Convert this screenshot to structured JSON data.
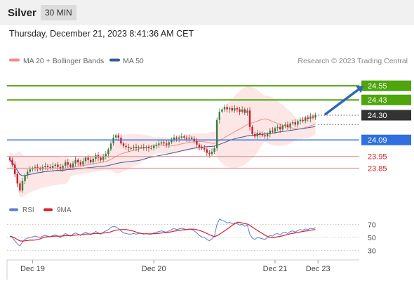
{
  "header": {
    "title": "Silver",
    "timeframe": "30 MIN",
    "datetime": "Thursday, December 21, 2023 8:41:36 AM CET"
  },
  "colors": {
    "ma20": "#f28c8c",
    "bollinger_fill": "#fde3e3",
    "ma50": "#3a5c95",
    "green_level": "#4ea50c",
    "blue_level": "#2f6fe0",
    "red_level": "#d8202a",
    "candle_up": "#3e7d3e",
    "candle_down": "#c8202a",
    "current_price": "#333333",
    "rsi": "#5b7fd6",
    "rsi_ma": "#d8202a",
    "arrow": "#2f67b5"
  },
  "legend": {
    "ma20": "MA 20 + Bollinger Bands",
    "ma50": "MA 50"
  },
  "copyright": "Research © 2023 Trading Central",
  "chart_data": {
    "type": "candlestick",
    "ylim": [
      23.56,
      24.7
    ],
    "x_ticks": [
      {
        "label": "Dec 19",
        "index": 9
      },
      {
        "label": "Dec 20",
        "index": 57
      },
      {
        "label": "Dec 21",
        "index": 105
      },
      {
        "label": "Dec 23",
        "index": 122
      }
    ],
    "levels": [
      {
        "value": 24.55,
        "label": "24.55",
        "kind": "resistance"
      },
      {
        "value": 24.43,
        "label": "24.43",
        "kind": "resistance"
      },
      {
        "value": 24.09,
        "label": "24.09",
        "kind": "pivot"
      },
      {
        "value": 23.95,
        "label": "23.95",
        "kind": "support"
      },
      {
        "value": 23.85,
        "label": "23.85",
        "kind": "support"
      }
    ],
    "current_price": {
      "value": 24.3,
      "label": "24.30"
    },
    "arrow": {
      "from": {
        "index": 125,
        "value": 24.31
      },
      "to": {
        "index": 140,
        "value": 24.55
      }
    },
    "closes": [
      23.92,
      23.88,
      23.8,
      23.72,
      23.66,
      23.74,
      23.79,
      23.82,
      23.84,
      23.85,
      23.86,
      23.85,
      23.84,
      23.86,
      23.87,
      23.86,
      23.85,
      23.87,
      23.88,
      23.86,
      23.84,
      23.87,
      23.9,
      23.88,
      23.86,
      23.89,
      23.92,
      23.9,
      23.88,
      23.91,
      23.94,
      23.92,
      23.9,
      23.93,
      23.96,
      23.94,
      23.92,
      23.95,
      23.97,
      24.01,
      24.06,
      24.11,
      24.13,
      24.11,
      24.06,
      24.04,
      24.03,
      24.02,
      24.02,
      24.03,
      24.02,
      24.03,
      24.03,
      24.02,
      24.03,
      24.02,
      24.02,
      24.04,
      24.05,
      24.06,
      24.07,
      24.06,
      24.05,
      24.07,
      24.09,
      24.11,
      24.1,
      24.11,
      24.12,
      24.11,
      24.1,
      24.11,
      24.1,
      24.08,
      24.05,
      24.03,
      24.02,
      24.01,
      23.98,
      23.97,
      23.99,
      24.02,
      24.26,
      24.33,
      24.35,
      24.37,
      24.35,
      24.36,
      24.34,
      24.36,
      24.35,
      24.33,
      24.35,
      24.32,
      24.34,
      24.2,
      24.14,
      24.12,
      24.15,
      24.14,
      24.13,
      24.12,
      24.14,
      24.17,
      24.16,
      24.19,
      24.2,
      24.18,
      24.21,
      24.22,
      24.2,
      24.23,
      24.24,
      24.22,
      24.25,
      24.26,
      24.25,
      24.28,
      24.27,
      24.29,
      24.28,
      24.3
    ],
    "rsi_ticks": [
      70,
      50,
      30
    ],
    "rsi_ylim": [
      20,
      80
    ],
    "rsi": [
      52,
      50,
      45,
      40,
      37,
      43,
      47,
      49,
      50,
      51,
      52,
      51,
      50,
      52,
      53,
      52,
      51,
      53,
      54,
      52,
      50,
      53,
      56,
      54,
      52,
      55,
      57,
      55,
      53,
      56,
      58,
      56,
      54,
      57,
      59,
      57,
      55,
      58,
      60,
      62,
      65,
      67,
      66,
      64,
      60,
      57,
      56,
      55,
      55,
      56,
      55,
      56,
      56,
      55,
      56,
      55,
      55,
      57,
      58,
      59,
      60,
      59,
      58,
      60,
      62,
      64,
      62,
      63,
      64,
      63,
      62,
      63,
      62,
      60,
      57,
      53,
      51,
      50,
      47,
      45,
      48,
      52,
      70,
      78,
      76,
      75,
      72,
      73,
      71,
      72,
      71,
      69,
      70,
      67,
      69,
      55,
      49,
      47,
      50,
      49,
      48,
      47,
      50,
      53,
      52,
      55,
      56,
      54,
      57,
      58,
      56,
      59,
      60,
      58,
      61,
      62,
      61,
      63,
      62,
      64,
      63,
      65
    ],
    "rsi_ma_label": "9MA",
    "rsi_label": "RSI"
  }
}
